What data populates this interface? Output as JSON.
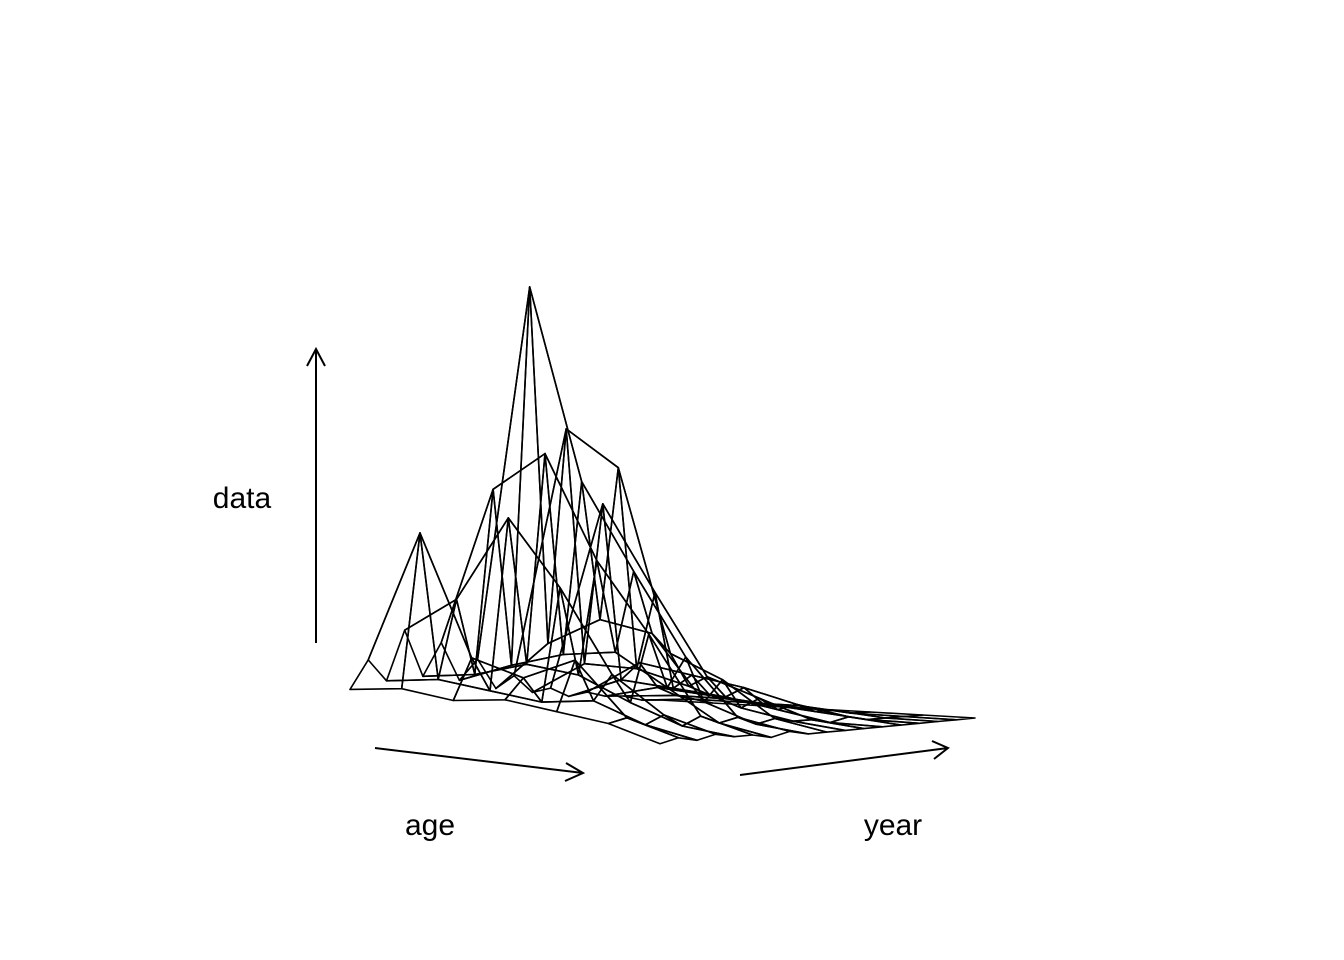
{
  "chart_data": {
    "type": "surface",
    "title": "",
    "xlabel": "age",
    "ylabel": "year",
    "zlabel": "data",
    "surface_rows": [
      [
        0.03,
        0.1,
        0.05,
        0.17,
        0.06,
        0.14,
        0.05,
        0.1,
        0.03,
        0.06,
        0.02,
        0.03,
        0.01,
        0.02,
        0.01,
        0.01,
        0.0,
        0.0
      ],
      [
        0.05,
        0.42,
        0.07,
        0.26,
        0.08,
        0.52,
        0.1,
        1.0,
        0.15,
        0.66,
        0.1,
        0.48,
        0.06,
        0.1,
        0.04,
        0.02,
        0.01,
        0.0
      ],
      [
        0.04,
        0.14,
        0.06,
        0.47,
        0.12,
        0.62,
        0.14,
        0.55,
        0.22,
        0.58,
        0.1,
        0.28,
        0.05,
        0.08,
        0.03,
        0.02,
        0.01,
        0.0
      ],
      [
        0.06,
        0.11,
        0.05,
        0.32,
        0.11,
        0.38,
        0.16,
        0.35,
        0.2,
        0.15,
        0.07,
        0.09,
        0.04,
        0.06,
        0.02,
        0.01,
        0.01,
        0.0
      ],
      [
        0.05,
        0.17,
        0.07,
        0.13,
        0.06,
        0.22,
        0.09,
        0.16,
        0.05,
        0.1,
        0.03,
        0.05,
        0.02,
        0.03,
        0.01,
        0.01,
        0.0,
        0.0
      ],
      [
        0.04,
        0.05,
        0.03,
        0.05,
        0.02,
        0.04,
        0.02,
        0.03,
        0.01,
        0.02,
        0.01,
        0.01,
        0.0,
        0.01,
        0.0,
        0.0,
        0.0,
        0.0
      ],
      [
        0.01,
        0.02,
        0.01,
        0.02,
        0.01,
        0.01,
        0.0,
        0.01,
        0.0,
        0.0,
        0.0,
        0.0,
        0.0,
        0.0,
        0.0,
        0.0,
        0.0,
        0.0
      ]
    ]
  }
}
